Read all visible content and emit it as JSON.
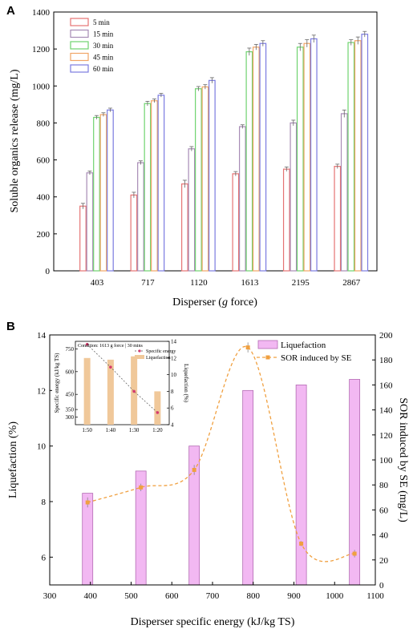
{
  "chart_data": [
    {
      "panel": "A",
      "type": "bar",
      "title": "",
      "xlabel_prefix": "Disperser (",
      "xlabel_italic": "g",
      "xlabel_suffix": " force)",
      "ylabel": "Soluble organics release (mg/L)",
      "categories": [
        "403",
        "717",
        "1120",
        "1613",
        "2195",
        "2867"
      ],
      "ylim": [
        0,
        1400
      ],
      "yticks": [
        0,
        200,
        400,
        600,
        800,
        1000,
        1200,
        1400
      ],
      "legend_position": "top-left",
      "series": [
        {
          "name": "5 min",
          "color": "#e57373",
          "values": [
            350,
            410,
            470,
            525,
            550,
            565
          ],
          "errors": [
            15,
            15,
            20,
            12,
            12,
            12
          ]
        },
        {
          "name": "15 min",
          "color": "#a78bb5",
          "values": [
            530,
            585,
            660,
            780,
            800,
            850
          ],
          "errors": [
            10,
            10,
            12,
            10,
            15,
            20
          ]
        },
        {
          "name": "30 min",
          "color": "#6fd36f",
          "values": [
            830,
            905,
            985,
            1185,
            1210,
            1235
          ],
          "errors": [
            10,
            12,
            12,
            20,
            20,
            15
          ]
        },
        {
          "name": "45 min",
          "color": "#f0a566",
          "values": [
            845,
            920,
            995,
            1210,
            1230,
            1245
          ],
          "errors": [
            10,
            10,
            12,
            15,
            20,
            20
          ]
        },
        {
          "name": "60 min",
          "color": "#7b7be0",
          "values": [
            870,
            950,
            1030,
            1230,
            1255,
            1280
          ],
          "errors": [
            10,
            10,
            15,
            15,
            20,
            15
          ]
        }
      ]
    },
    {
      "panel": "B",
      "type": "bar+line",
      "title": "",
      "xlabel": "Disperser specific energy (kJ/kg TS)",
      "ylabel_left": "Liquefaction (%)",
      "ylabel_right": "SOR induced by SE (mg/L)",
      "xlim": [
        300,
        1100
      ],
      "xticks": [
        300,
        400,
        500,
        600,
        700,
        800,
        900,
        1000,
        1100
      ],
      "ylim_left": [
        5,
        14
      ],
      "yticks_left": [
        6,
        8,
        10,
        12,
        14
      ],
      "ylim_right": [
        0,
        200
      ],
      "yticks_right": [
        0,
        20,
        40,
        60,
        80,
        100,
        120,
        140,
        160,
        180,
        200
      ],
      "legend_position": "top-right",
      "bars": {
        "name": "Liquefaction",
        "color": "#f2b8f2",
        "edge": "#b36bb3",
        "x": [
          393,
          524,
          655,
          787,
          918,
          1049
        ],
        "values": [
          8.3,
          9.1,
          10.0,
          12.0,
          12.2,
          12.4
        ]
      },
      "line": {
        "name": "SOR induced by SE",
        "color": "#f0a040",
        "x": [
          393,
          524,
          655,
          787,
          918,
          1049
        ],
        "values": [
          66,
          78,
          92,
          190,
          33,
          25
        ],
        "errors": [
          4,
          3,
          4,
          4,
          2,
          3
        ]
      },
      "inset": {
        "type": "bar+line",
        "note": "Condition: 1613 g force | 30 mins",
        "categories": [
          "1:50",
          "1:40",
          "1:30",
          "1:20"
        ],
        "ylabel_left": "Specific energy (kJ/kg TS)",
        "ylabel_right": "Liquefaction (%)",
        "ylim_left": [
          250,
          800
        ],
        "yticks_left": [
          300,
          350,
          450,
          600,
          750
        ],
        "ylim_right": [
          4,
          14
        ],
        "yticks_right": [
          4,
          6,
          8,
          10,
          12,
          14
        ],
        "line": {
          "name": "Specific energy",
          "color": "#d63a6e",
          "values": [
            780,
            630,
            470,
            330
          ]
        },
        "bars": {
          "name": "Liquefaction",
          "color": "#f0c89a",
          "values": [
            12,
            11.8,
            12.2,
            8.0
          ]
        }
      }
    }
  ]
}
